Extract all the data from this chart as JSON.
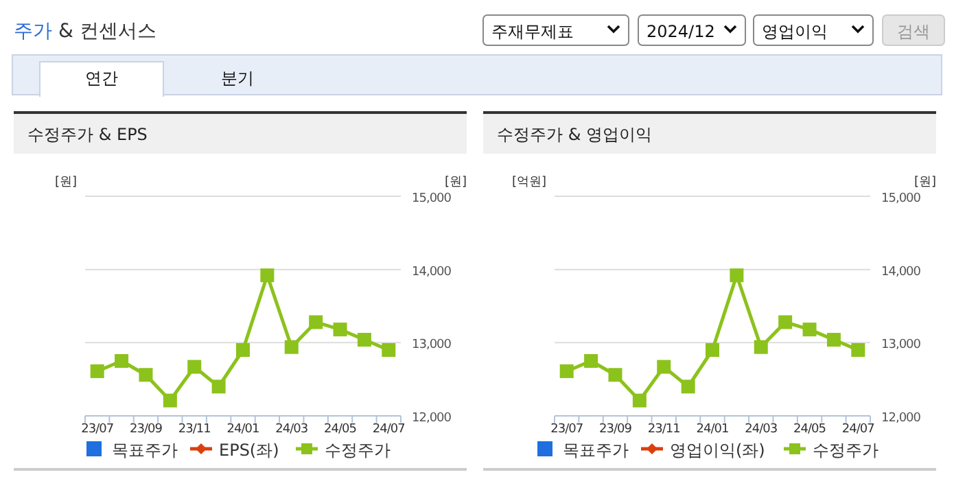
{
  "chart_data": [
    {
      "type": "line",
      "title": "수정주가 & EPS",
      "annotations": [
        "주가 & 컨센서스",
        "주재무제표",
        "2024/12",
        "영업이익",
        "검색",
        "연간",
        "분기"
      ],
      "ylabel": "[원]",
      "y2label": "[원]",
      "categories": [
        "23/07",
        null,
        "23/09",
        null,
        "23/11",
        null,
        "24/01",
        null,
        "24/03",
        null,
        "24/05",
        null,
        "24/07"
      ],
      "y2lim": [
        12000,
        15000
      ],
      "y2ticks": [
        {
          "value": 12000,
          "label": "12,000"
        },
        {
          "value": 13000,
          "label": "13,000"
        },
        {
          "value": 14000,
          "label": "14,000"
        },
        {
          "value": 15000,
          "label": "15,000"
        }
      ],
      "grid": "y",
      "legend": "bottom",
      "series": [
        {
          "name": "목표주가",
          "type": "scatter",
          "marker": "square",
          "color": "#1f6fe0",
          "axis": "y2",
          "values": [
            null,
            null,
            null,
            null,
            null,
            null,
            null,
            null,
            null,
            null,
            null,
            null,
            null
          ]
        },
        {
          "name": "EPS(좌)",
          "marker": "diamond",
          "color": "#d9400f",
          "axis": "y",
          "values": [
            null,
            null,
            null,
            null,
            null,
            null,
            null,
            null,
            null,
            null,
            null,
            null,
            null
          ]
        },
        {
          "name": "수정주가",
          "marker": "square",
          "color": "#8cc21c",
          "axis": "y2",
          "values": [
            12610,
            12750,
            12560,
            12210,
            12670,
            12400,
            12900,
            13920,
            12940,
            13280,
            13180,
            13040,
            12900
          ]
        }
      ]
    },
    {
      "type": "line",
      "title": "수정주가 & 영업이익",
      "ylabel": "[억원]",
      "y2label": "[원]",
      "categories": [
        "23/07",
        null,
        "23/09",
        null,
        "23/11",
        null,
        "24/01",
        null,
        "24/03",
        null,
        "24/05",
        null,
        "24/07"
      ],
      "y2lim": [
        12000,
        15000
      ],
      "y2ticks": [
        {
          "value": 12000,
          "label": "12,000"
        },
        {
          "value": 13000,
          "label": "13,000"
        },
        {
          "value": 14000,
          "label": "14,000"
        },
        {
          "value": 15000,
          "label": "15,000"
        }
      ],
      "grid": "y",
      "legend": "bottom",
      "series": [
        {
          "name": "목표주가",
          "type": "scatter",
          "marker": "square",
          "color": "#1f6fe0",
          "axis": "y2",
          "values": [
            null,
            null,
            null,
            null,
            null,
            null,
            null,
            null,
            null,
            null,
            null,
            null,
            null
          ]
        },
        {
          "name": "영업이익(좌)",
          "marker": "diamond",
          "color": "#d9400f",
          "axis": "y",
          "values": [
            null,
            null,
            null,
            null,
            null,
            null,
            null,
            null,
            null,
            null,
            null,
            null,
            null
          ]
        },
        {
          "name": "수정주가",
          "marker": "square",
          "color": "#8cc21c",
          "axis": "y2",
          "values": [
            12610,
            12750,
            12560,
            12210,
            12670,
            12400,
            12900,
            13920,
            12940,
            13280,
            13180,
            13040,
            12900
          ]
        }
      ]
    }
  ]
}
